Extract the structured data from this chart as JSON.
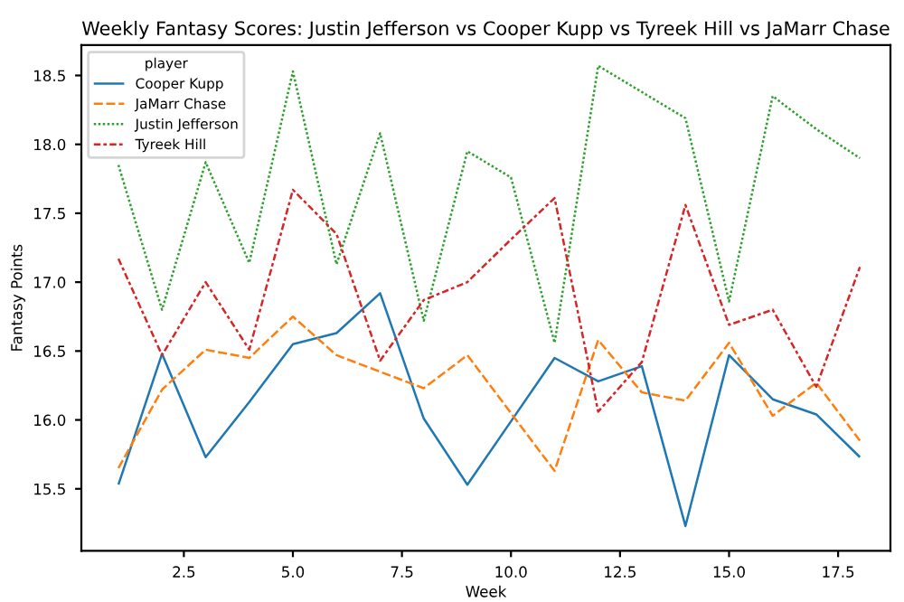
{
  "chart_data": {
    "type": "line",
    "title": "Weekly Fantasy Scores: Justin Jefferson vs Cooper Kupp vs Tyreek Hill vs JaMarr Chase",
    "xlabel": "Week",
    "ylabel": "Fantasy Points",
    "legend_title": "player",
    "legend": "top left",
    "grid": false,
    "marker": "none",
    "x": [
      1,
      2,
      3,
      4,
      5,
      6,
      7,
      8,
      9,
      10,
      11,
      12,
      13,
      14,
      15,
      16,
      17,
      18
    ],
    "xlim": [
      0.15,
      18.7
    ],
    "ylim": [
      15.05,
      18.72
    ],
    "xticks": [
      {
        "value": 2.5,
        "label": "2.5"
      },
      {
        "value": 5,
        "label": "5.0"
      },
      {
        "value": 7.5,
        "label": "7.5"
      },
      {
        "value": 10,
        "label": "10.0"
      },
      {
        "value": 12.5,
        "label": "12.5"
      },
      {
        "value": 15,
        "label": "15.0"
      },
      {
        "value": 17.5,
        "label": "17.5"
      }
    ],
    "yticks": [
      {
        "value": 15.5,
        "label": "15.5"
      },
      {
        "value": 16,
        "label": "16.0"
      },
      {
        "value": 16.5,
        "label": "16.5"
      },
      {
        "value": 17,
        "label": "17.0"
      },
      {
        "value": 17.5,
        "label": "17.5"
      },
      {
        "value": 18,
        "label": "18.0"
      },
      {
        "value": 18.5,
        "label": "18.5"
      }
    ],
    "series": [
      {
        "name": "Cooper Kupp",
        "color": "#1f77b4",
        "line_style": "solid",
        "values": [
          15.53,
          16.48,
          15.73,
          16.13,
          16.55,
          16.63,
          16.92,
          16.01,
          15.53,
          15.99,
          16.45,
          16.28,
          16.39,
          15.23,
          16.47,
          16.15,
          16.04,
          15.73
        ]
      },
      {
        "name": "JaMarr Chase",
        "color": "#ff7f0e",
        "line_style": "dashed",
        "values": [
          15.65,
          16.22,
          16.51,
          16.45,
          16.75,
          16.47,
          16.35,
          16.23,
          16.47,
          16.05,
          15.63,
          16.58,
          16.2,
          16.14,
          16.56,
          16.03,
          16.27,
          15.85
        ]
      },
      {
        "name": "Justin Jefferson",
        "color": "#2ca02c",
        "line_style": "dotted",
        "values": [
          17.85,
          16.8,
          17.87,
          17.14,
          18.53,
          17.13,
          18.08,
          16.72,
          17.95,
          17.76,
          16.56,
          18.57,
          18.38,
          18.19,
          16.86,
          18.35,
          18.11,
          17.9
        ]
      },
      {
        "name": "Tyreek Hill",
        "color": "#d62728",
        "line_style": "dashdot",
        "values": [
          17.17,
          16.47,
          17.0,
          16.51,
          17.67,
          17.35,
          16.43,
          16.87,
          17.0,
          17.31,
          17.61,
          16.06,
          16.42,
          17.56,
          16.69,
          16.8,
          16.24,
          17.11
        ]
      }
    ]
  }
}
